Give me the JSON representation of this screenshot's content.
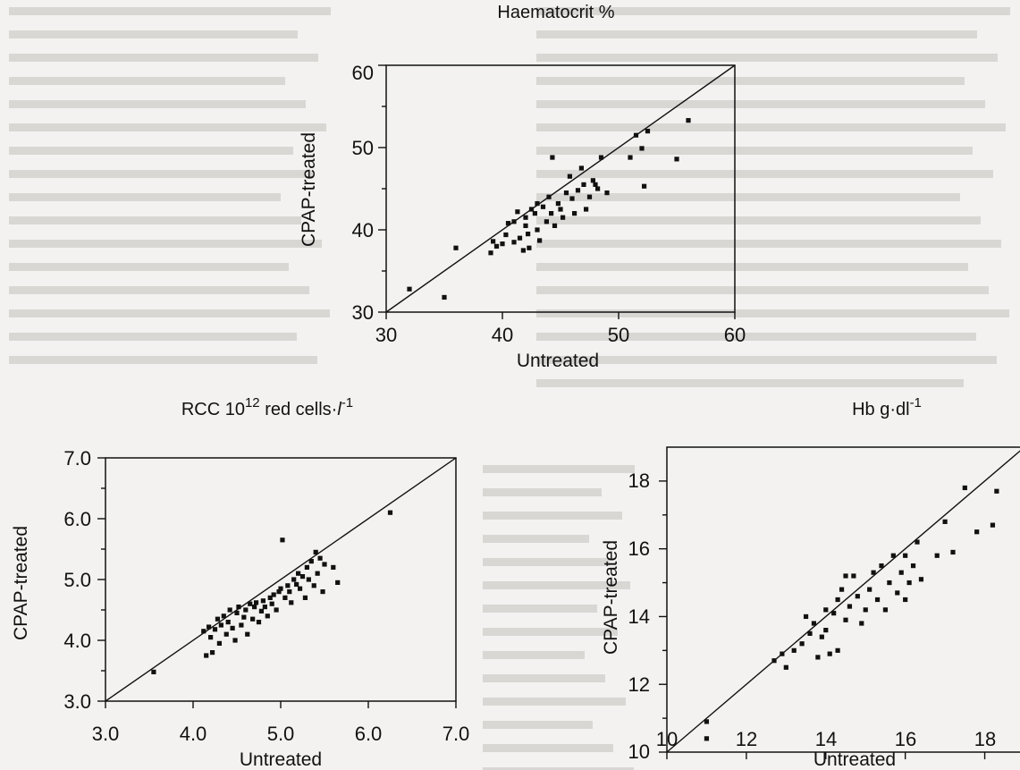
{
  "chart_data": [
    {
      "type": "scatter",
      "title": "Haematocrit %",
      "xlabel": "Untreated",
      "ylabel": "CPAP-treated",
      "xlim": [
        30,
        60
      ],
      "ylim": [
        30,
        60
      ],
      "x_ticks": [
        "30",
        "40",
        "50",
        "60"
      ],
      "y_ticks": [
        "30",
        "40",
        "50",
        "60"
      ],
      "reference_line": "y = x",
      "grid": false,
      "points": [
        [
          32.0,
          32.8
        ],
        [
          35.0,
          31.8
        ],
        [
          36.0,
          37.8
        ],
        [
          39.0,
          37.2
        ],
        [
          39.2,
          38.6
        ],
        [
          39.5,
          38.0
        ],
        [
          40.0,
          38.3
        ],
        [
          40.3,
          39.4
        ],
        [
          40.5,
          40.8
        ],
        [
          41.0,
          41.0
        ],
        [
          41.0,
          38.5
        ],
        [
          41.3,
          42.2
        ],
        [
          41.5,
          39.0
        ],
        [
          41.8,
          37.5
        ],
        [
          42.0,
          41.5
        ],
        [
          42.0,
          40.5
        ],
        [
          42.2,
          39.5
        ],
        [
          42.3,
          37.8
        ],
        [
          42.5,
          42.5
        ],
        [
          42.8,
          42.0
        ],
        [
          43.0,
          43.2
        ],
        [
          43.0,
          40.0
        ],
        [
          43.2,
          38.7
        ],
        [
          43.5,
          42.8
        ],
        [
          43.8,
          41.0
        ],
        [
          44.0,
          44.0
        ],
        [
          44.2,
          42.0
        ],
        [
          44.3,
          48.8
        ],
        [
          44.5,
          40.5
        ],
        [
          44.8,
          43.2
        ],
        [
          45.0,
          42.5
        ],
        [
          45.2,
          41.5
        ],
        [
          45.5,
          44.5
        ],
        [
          45.8,
          46.5
        ],
        [
          46.0,
          43.8
        ],
        [
          46.2,
          42.0
        ],
        [
          46.5,
          44.8
        ],
        [
          46.8,
          47.5
        ],
        [
          47.0,
          45.5
        ],
        [
          47.2,
          42.5
        ],
        [
          47.5,
          44.0
        ],
        [
          47.8,
          46.0
        ],
        [
          48.0,
          45.5
        ],
        [
          48.2,
          45.0
        ],
        [
          48.5,
          48.8
        ],
        [
          49.0,
          44.5
        ],
        [
          51.0,
          48.8
        ],
        [
          51.5,
          51.5
        ],
        [
          52.0,
          49.9
        ],
        [
          52.2,
          45.3
        ],
        [
          52.5,
          52.0
        ],
        [
          55.0,
          48.6
        ],
        [
          56.0,
          53.3
        ]
      ]
    },
    {
      "type": "scatter",
      "title": "RCC 10¹² red cells·l⁻¹",
      "xlabel": "Untreated",
      "ylabel": "CPAP-treated",
      "xlim": [
        3.0,
        7.0
      ],
      "ylim": [
        3.0,
        7.0
      ],
      "x_ticks": [
        "3.0",
        "4.0",
        "5.0",
        "6.0",
        "7.0"
      ],
      "y_ticks": [
        "3.0",
        "4.0",
        "5.0",
        "6.0",
        "7.0"
      ],
      "reference_line": "y = x",
      "grid": false,
      "points": [
        [
          3.55,
          3.48
        ],
        [
          4.12,
          4.15
        ],
        [
          4.15,
          3.75
        ],
        [
          4.18,
          4.22
        ],
        [
          4.2,
          4.05
        ],
        [
          4.22,
          3.8
        ],
        [
          4.25,
          4.18
        ],
        [
          4.28,
          4.35
        ],
        [
          4.3,
          3.95
        ],
        [
          4.32,
          4.25
        ],
        [
          4.35,
          4.4
        ],
        [
          4.38,
          4.1
        ],
        [
          4.4,
          4.3
        ],
        [
          4.42,
          4.5
        ],
        [
          4.45,
          4.2
        ],
        [
          4.48,
          4.0
        ],
        [
          4.5,
          4.45
        ],
        [
          4.52,
          4.55
        ],
        [
          4.55,
          4.25
        ],
        [
          4.58,
          4.38
        ],
        [
          4.6,
          4.5
        ],
        [
          4.62,
          4.1
        ],
        [
          4.65,
          4.6
        ],
        [
          4.68,
          4.35
        ],
        [
          4.7,
          4.55
        ],
        [
          4.72,
          4.62
        ],
        [
          4.75,
          4.3
        ],
        [
          4.78,
          4.48
        ],
        [
          4.8,
          4.65
        ],
        [
          4.82,
          4.55
        ],
        [
          4.85,
          4.4
        ],
        [
          4.88,
          4.7
        ],
        [
          4.9,
          4.6
        ],
        [
          4.92,
          4.75
        ],
        [
          4.95,
          4.5
        ],
        [
          4.98,
          4.8
        ],
        [
          5.0,
          4.85
        ],
        [
          5.02,
          5.65
        ],
        [
          5.05,
          4.7
        ],
        [
          5.08,
          4.9
        ],
        [
          5.1,
          4.8
        ],
        [
          5.12,
          4.62
        ],
        [
          5.15,
          5.0
        ],
        [
          5.18,
          4.92
        ],
        [
          5.2,
          5.1
        ],
        [
          5.22,
          4.85
        ],
        [
          5.25,
          5.05
        ],
        [
          5.28,
          4.7
        ],
        [
          5.3,
          5.2
        ],
        [
          5.32,
          5.0
        ],
        [
          5.35,
          5.3
        ],
        [
          5.38,
          4.9
        ],
        [
          5.4,
          5.45
        ],
        [
          5.42,
          5.1
        ],
        [
          5.45,
          5.35
        ],
        [
          5.48,
          4.8
        ],
        [
          5.5,
          5.25
        ],
        [
          5.6,
          5.2
        ],
        [
          5.65,
          4.95
        ],
        [
          6.25,
          6.1
        ]
      ]
    },
    {
      "type": "scatter",
      "title": "Hb g·dl⁻¹",
      "xlabel": "Untreated",
      "ylabel": "CPAP-treated",
      "xlim": [
        10,
        19
      ],
      "ylim": [
        10,
        19
      ],
      "x_ticks": [
        "10",
        "12",
        "14",
        "16",
        "18"
      ],
      "y_ticks": [
        "10",
        "12",
        "14",
        "16",
        "18"
      ],
      "reference_line": "y = x",
      "grid": false,
      "points": [
        [
          11.0,
          10.9
        ],
        [
          11.0,
          10.4
        ],
        [
          12.7,
          12.7
        ],
        [
          12.9,
          12.9
        ],
        [
          13.0,
          12.5
        ],
        [
          13.2,
          13.0
        ],
        [
          13.4,
          13.2
        ],
        [
          13.5,
          14.0
        ],
        [
          13.6,
          13.5
        ],
        [
          13.7,
          13.8
        ],
        [
          13.8,
          12.8
        ],
        [
          13.9,
          13.4
        ],
        [
          14.0,
          14.2
        ],
        [
          14.0,
          13.6
        ],
        [
          14.1,
          12.9
        ],
        [
          14.2,
          14.1
        ],
        [
          14.3,
          14.5
        ],
        [
          14.3,
          13.0
        ],
        [
          14.4,
          14.8
        ],
        [
          14.5,
          15.2
        ],
        [
          14.5,
          13.9
        ],
        [
          14.6,
          14.3
        ],
        [
          14.7,
          15.2
        ],
        [
          14.8,
          14.6
        ],
        [
          14.9,
          13.8
        ],
        [
          15.0,
          14.2
        ],
        [
          15.1,
          14.8
        ],
        [
          15.2,
          15.3
        ],
        [
          15.3,
          14.5
        ],
        [
          15.4,
          15.5
        ],
        [
          15.5,
          14.2
        ],
        [
          15.6,
          15.0
        ],
        [
          15.7,
          15.8
        ],
        [
          15.8,
          14.7
        ],
        [
          15.9,
          15.3
        ],
        [
          16.0,
          15.8
        ],
        [
          16.0,
          14.5
        ],
        [
          16.1,
          15.0
        ],
        [
          16.2,
          15.5
        ],
        [
          16.3,
          16.2
        ],
        [
          16.4,
          15.1
        ],
        [
          16.8,
          15.8
        ],
        [
          17.0,
          16.8
        ],
        [
          17.2,
          15.9
        ],
        [
          17.5,
          17.8
        ],
        [
          17.8,
          16.5
        ],
        [
          18.2,
          16.7
        ],
        [
          18.3,
          17.7
        ]
      ]
    }
  ]
}
